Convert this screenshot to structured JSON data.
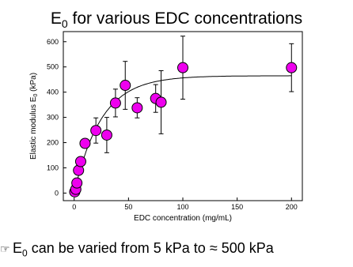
{
  "title": {
    "main": "E",
    "sub": "0",
    "rest": " for various EDC concentrations"
  },
  "caption": {
    "bullet": "☞",
    "part1": "E",
    "sub": "0",
    "part2": " can be varied from 5 kPa to ≈ 500 kPa"
  },
  "chart_data": {
    "type": "scatter",
    "xlabel": "EDC concentration (mg/mL)",
    "ylabel": {
      "main": "Elastic modulus E",
      "sub": "0",
      "rest": " (kPa)"
    },
    "xlim": [
      -10,
      210
    ],
    "ylim": [
      -30,
      640
    ],
    "xticks": [
      0,
      50,
      100,
      150,
      200
    ],
    "yticks": [
      0,
      100,
      200,
      300,
      400,
      500,
      600
    ],
    "grid": false,
    "marker_color": "#ee00ee",
    "marker_edge": "#000000",
    "series": [
      {
        "x": [
          0.5,
          1.5,
          2.5,
          4,
          6,
          10,
          20,
          30,
          38,
          47,
          58,
          75,
          80,
          100,
          200
        ],
        "y": [
          5,
          15,
          40,
          90,
          125,
          197,
          248,
          230,
          357,
          427,
          338,
          375,
          360,
          497,
          497
        ],
        "err": [
          0,
          0,
          0,
          0,
          0,
          12,
          50,
          70,
          55,
          95,
          40,
          55,
          125,
          125,
          95
        ]
      }
    ],
    "fit": {
      "type": "line",
      "model": "exponential-rise",
      "plateau": 465,
      "rate": 0.04
    }
  }
}
